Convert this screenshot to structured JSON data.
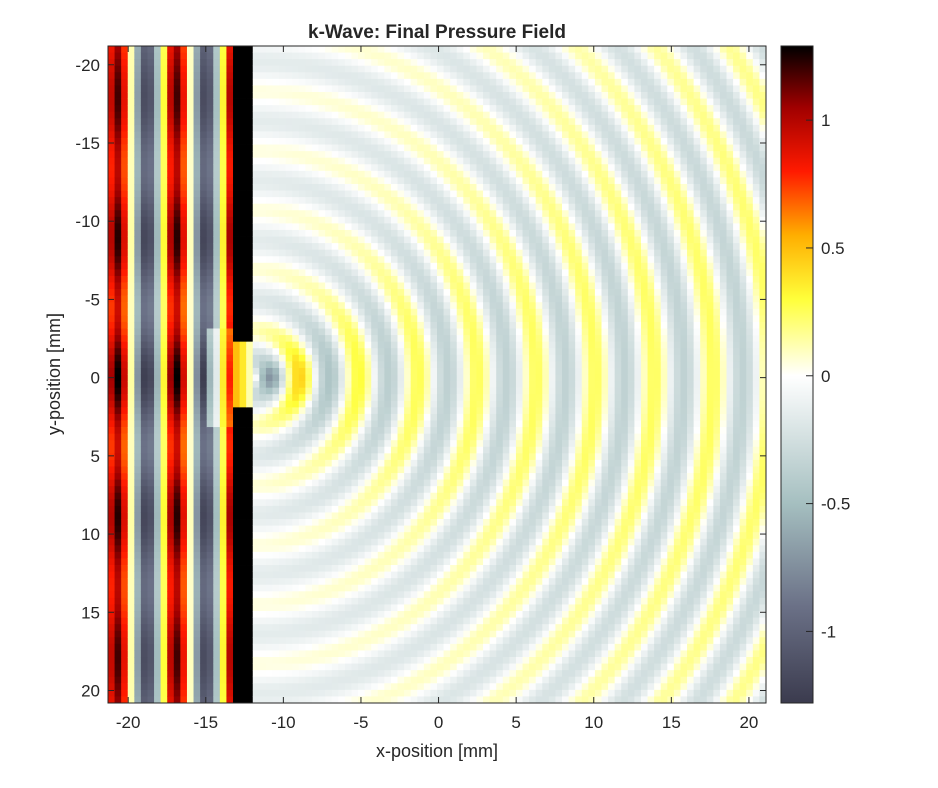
{
  "chart_data": {
    "type": "heatmap",
    "title": "k-Wave: Final Pressure Field",
    "xlabel": "x-position [mm]",
    "ylabel": "y-position [mm]",
    "xlim": [
      -21.3,
      21.1
    ],
    "ylim": [
      -21.2,
      20.8
    ],
    "y_reversed": true,
    "xticks": [
      -20,
      -15,
      -10,
      -5,
      0,
      5,
      10,
      15,
      20
    ],
    "yticks": [
      -20,
      -15,
      -10,
      -5,
      0,
      5,
      10,
      15,
      20
    ],
    "colorbar": {
      "clim": [
        -1.28,
        1.29
      ],
      "ticks": [
        1,
        0.5,
        0,
        -0.5,
        -1
      ],
      "colormap": [
        {
          "v": -1.28,
          "c": "#3b3b4e"
        },
        {
          "v": -0.9,
          "c": "#6b7187"
        },
        {
          "v": -0.5,
          "c": "#a5bfc0"
        },
        {
          "v": 0.0,
          "c": "#ffffff"
        },
        {
          "v": 0.3,
          "c": "#ffff3a"
        },
        {
          "v": 0.55,
          "c": "#ffae00"
        },
        {
          "v": 0.8,
          "c": "#ff1a00"
        },
        {
          "v": 1.05,
          "c": "#a00000"
        },
        {
          "v": 1.29,
          "c": "#000000"
        }
      ]
    },
    "field_model": {
      "grid_cells": 100,
      "wavelength_mm": 3.8,
      "incident_peak_x_mm": -20.7,
      "incident_amplitude": 1.1,
      "wall_x_mm": [
        -13.1,
        -11.8
      ],
      "wall_value": 1.29,
      "slit_y_mm": [
        -2.2,
        1.7
      ],
      "slit_center_mm": [
        -12.0,
        0.0
      ],
      "diffracted_first_peak_r_mm": 3.1
    }
  }
}
